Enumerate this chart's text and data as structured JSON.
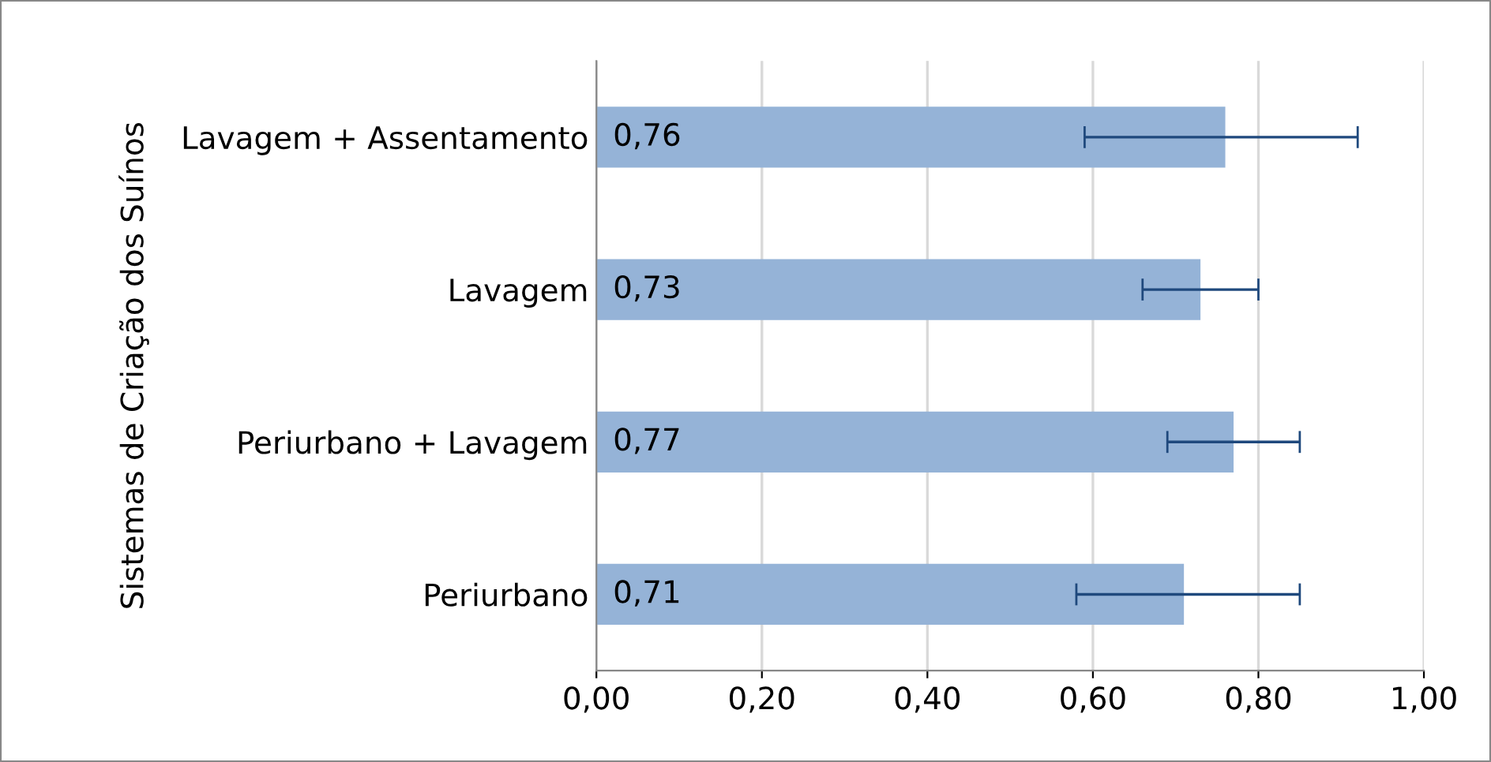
{
  "chart_data": {
    "type": "bar",
    "orientation": "horizontal",
    "ylabel": "Sistemas de Criação dos Suínos",
    "categories": [
      "Lavagem + Assentamento",
      "Lavagem",
      "Periurbano + Lavagem",
      "Periurbano"
    ],
    "values": [
      0.76,
      0.73,
      0.77,
      0.71
    ],
    "value_labels": [
      "0,76",
      "0,73",
      "0,77",
      "0,71"
    ],
    "errors": [
      [
        0.59,
        0.92
      ],
      [
        0.66,
        0.8
      ],
      [
        0.69,
        0.85
      ],
      [
        0.58,
        0.85
      ]
    ],
    "color": "#95b3d7",
    "xlim": [
      0,
      1
    ],
    "xticks": [
      {
        "value": 0,
        "label": "0,00"
      },
      {
        "value": 0.2,
        "label": "0,20"
      },
      {
        "value": 0.4,
        "label": "0,40"
      },
      {
        "value": 0.6,
        "label": "0,60"
      },
      {
        "value": 0.8,
        "label": "0,80"
      },
      {
        "value": 1,
        "label": "1,00"
      }
    ],
    "grid": "x"
  }
}
